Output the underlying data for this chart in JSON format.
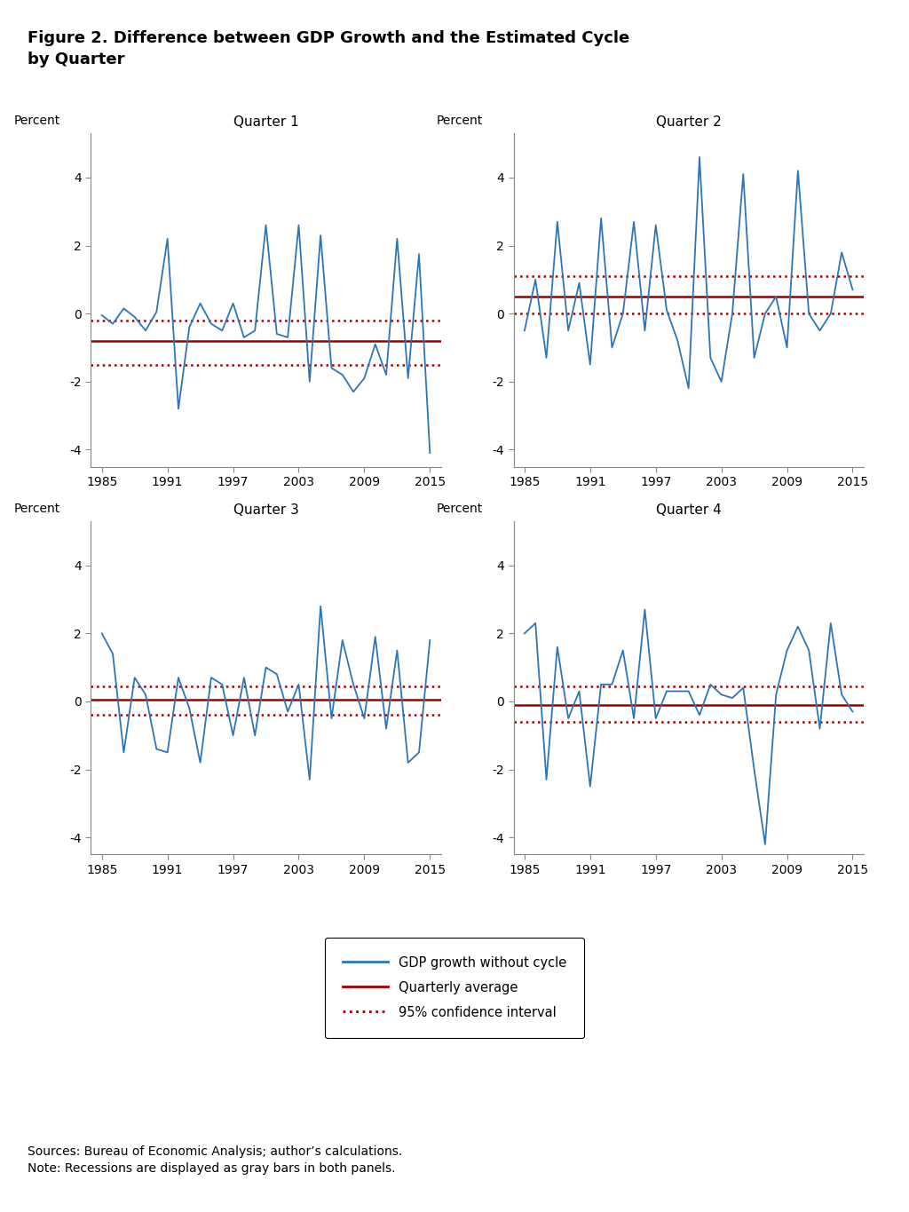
{
  "title": "Figure 2. Difference between GDP Growth and the Estimated Cycle\nby Quarter",
  "subplot_titles": [
    "Quarter 1",
    "Quarter 2",
    "Quarter 3",
    "Quarter 4"
  ],
  "ylabel": "Percent",
  "xlim": [
    1984,
    2016
  ],
  "ylim": [
    -4.5,
    5.3
  ],
  "yticks": [
    -4,
    -2,
    0,
    2,
    4
  ],
  "xticks": [
    1985,
    1991,
    1997,
    2003,
    2009,
    2015
  ],
  "line_color": "#2E75B6",
  "avg_line_color": "#9B0000",
  "ci_color": "#9B0000",
  "source_text": "Sources: Bureau of Economic Analysis; author’s calculations.\nNote: Recessions are displayed as gray bars in both panels.",
  "legend_labels": [
    "GDP growth without cycle",
    "Quarterly average",
    "95% confidence interval"
  ],
  "q1_years": [
    1985,
    1986,
    1987,
    1988,
    1989,
    1990,
    1991,
    1992,
    1993,
    1994,
    1995,
    1996,
    1997,
    1998,
    1999,
    2000,
    2001,
    2002,
    2003,
    2004,
    2005,
    2006,
    2007,
    2008,
    2009,
    2010,
    2011,
    2012,
    2013,
    2014,
    2015
  ],
  "q1_values": [
    -0.05,
    -0.3,
    0.15,
    -0.1,
    -0.5,
    0.05,
    2.2,
    -2.8,
    -0.4,
    0.3,
    -0.3,
    -0.5,
    0.3,
    -0.7,
    -0.5,
    2.6,
    -0.6,
    -0.7,
    2.6,
    -2.0,
    2.3,
    -1.6,
    -1.8,
    -2.3,
    -1.9,
    -0.9,
    -1.8,
    2.2,
    -1.9,
    1.75,
    -4.1
  ],
  "q1_avg": -0.8,
  "q1_ci_upper": -0.2,
  "q1_ci_lower": -1.5,
  "q2_years": [
    1985,
    1986,
    1987,
    1988,
    1989,
    1990,
    1991,
    1992,
    1993,
    1994,
    1995,
    1996,
    1997,
    1998,
    1999,
    2000,
    2001,
    2002,
    2003,
    2004,
    2005,
    2006,
    2007,
    2008,
    2009,
    2010,
    2011,
    2012,
    2013,
    2014,
    2015
  ],
  "q2_values": [
    -0.5,
    1.0,
    -1.3,
    2.7,
    -0.5,
    0.9,
    -1.5,
    2.8,
    -1.0,
    0.0,
    2.7,
    -0.5,
    2.6,
    0.1,
    -0.8,
    -2.2,
    4.6,
    -1.3,
    -2.0,
    0.0,
    4.1,
    -1.3,
    0.0,
    0.5,
    -1.0,
    4.2,
    0.0,
    -0.5,
    0.0,
    1.8,
    0.7
  ],
  "q2_avg": 0.5,
  "q2_ci_upper": 1.1,
  "q2_ci_lower": 0.0,
  "q3_years": [
    1985,
    1986,
    1987,
    1988,
    1989,
    1990,
    1991,
    1992,
    1993,
    1994,
    1995,
    1996,
    1997,
    1998,
    1999,
    2000,
    2001,
    2002,
    2003,
    2004,
    2005,
    2006,
    2007,
    2008,
    2009,
    2010,
    2011,
    2012,
    2013,
    2014,
    2015
  ],
  "q3_values": [
    2.0,
    1.4,
    -1.5,
    0.7,
    0.2,
    -1.4,
    -1.5,
    0.7,
    -0.2,
    -1.8,
    0.7,
    0.5,
    -1.0,
    0.7,
    -1.0,
    1.0,
    0.8,
    -0.3,
    0.5,
    -2.3,
    2.8,
    -0.5,
    1.8,
    0.5,
    -0.5,
    1.9,
    -0.8,
    1.5,
    -1.8,
    -1.5,
    1.8
  ],
  "q3_avg": 0.05,
  "q3_ci_upper": 0.45,
  "q3_ci_lower": -0.4,
  "q4_years": [
    1985,
    1986,
    1987,
    1988,
    1989,
    1990,
    1991,
    1992,
    1993,
    1994,
    1995,
    1996,
    1997,
    1998,
    1999,
    2000,
    2001,
    2002,
    2003,
    2004,
    2005,
    2006,
    2007,
    2008,
    2009,
    2010,
    2011,
    2012,
    2013,
    2014,
    2015
  ],
  "q4_values": [
    2.0,
    2.3,
    -2.3,
    1.6,
    -0.5,
    0.3,
    -2.5,
    0.5,
    0.5,
    1.5,
    -0.5,
    2.7,
    -0.5,
    0.3,
    0.3,
    0.3,
    -0.4,
    0.5,
    0.2,
    0.1,
    0.4,
    -2.0,
    -4.2,
    0.2,
    1.5,
    2.2,
    1.5,
    -0.8,
    2.3,
    0.2,
    -0.3
  ],
  "q4_avg": -0.1,
  "q4_ci_upper": 0.45,
  "q4_ci_lower": -0.6
}
